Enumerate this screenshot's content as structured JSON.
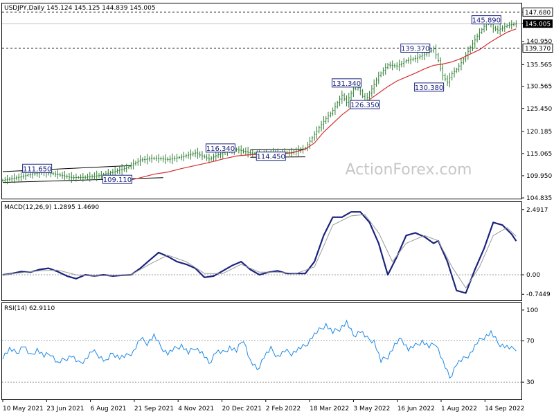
{
  "header": {
    "symbol_line": "USDJPY,Daily  145.124 145.125 144.839 145.005",
    "watermark": "ActionForex.com"
  },
  "colors": {
    "candle": "#2e7d32",
    "sma": "#d32f2f",
    "macd": "#1a237e",
    "signal": "#999999",
    "rsi": "#1e88e5",
    "trendline": "#000000",
    "label_border": "#1a237e",
    "label_text": "#1a237e"
  },
  "chart_data": [
    {
      "type": "line",
      "panel": "price",
      "ylim": [
        104.835,
        149.5
      ],
      "y_ticks": [
        "147.680",
        "145.065",
        "140.950",
        "135.565",
        "130.565",
        "125.450",
        "120.185",
        "115.065",
        "109.950",
        "104.835"
      ],
      "current_price_label": "145.005",
      "level_labels": [
        {
          "value": 147.68,
          "label": "147.680",
          "dashed": true
        },
        {
          "value": 139.37,
          "label": "139.370",
          "dashed": true,
          "highlight": true
        }
      ],
      "x_ticks": [
        "10 May 2021",
        "23 Jun 2021",
        "6 Aug 2021",
        "21 Sep 2021",
        "4 Nov 2021",
        "20 Dec 2021",
        "2 Feb 2022",
        "18 Mar 2022",
        "3 May 2022",
        "16 Jun 2022",
        "1 Aug 2022",
        "14 Sep 2022"
      ],
      "price_path": [
        [
          0,
          108.9
        ],
        [
          6,
          109.5
        ],
        [
          12,
          110.3
        ],
        [
          18,
          110.8
        ],
        [
          24,
          110.2
        ],
        [
          30,
          109.5
        ],
        [
          36,
          109.6
        ],
        [
          42,
          110.0
        ],
        [
          48,
          110.8
        ],
        [
          54,
          111.8
        ],
        [
          60,
          113.6
        ],
        [
          66,
          114.0
        ],
        [
          72,
          113.7
        ],
        [
          78,
          114.3
        ],
        [
          84,
          115.2
        ],
        [
          90,
          113.8
        ],
        [
          96,
          115.3
        ],
        [
          102,
          116.0
        ],
        [
          108,
          115.2
        ],
        [
          114,
          115.0
        ],
        [
          120,
          115.3
        ],
        [
          126,
          115.3
        ],
        [
          132,
          116.3
        ],
        [
          136,
          119.5
        ],
        [
          140,
          122.5
        ],
        [
          144,
          125.0
        ],
        [
          148,
          128.5
        ],
        [
          150,
          126.8
        ],
        [
          152,
          129.0
        ],
        [
          154,
          131.0
        ],
        [
          156,
          129.5
        ],
        [
          158,
          127.0
        ],
        [
          160,
          129.0
        ],
        [
          164,
          133.0
        ],
        [
          168,
          135.5
        ],
        [
          172,
          135.2
        ],
        [
          176,
          136.5
        ],
        [
          180,
          137.0
        ],
        [
          184,
          138.0
        ],
        [
          188,
          139.2
        ],
        [
          190,
          136.5
        ],
        [
          192,
          133.0
        ],
        [
          194,
          131.5
        ],
        [
          196,
          133.5
        ],
        [
          198,
          134.5
        ],
        [
          200,
          136.0
        ],
        [
          204,
          139.5
        ],
        [
          208,
          143.0
        ],
        [
          212,
          145.8
        ],
        [
          214,
          144.0
        ],
        [
          216,
          143.5
        ],
        [
          220,
          144.6
        ],
        [
          224,
          145.0
        ]
      ],
      "sma_path": [
        [
          56,
          109.0
        ],
        [
          60,
          109.5
        ],
        [
          66,
          110.3
        ],
        [
          72,
          110.8
        ],
        [
          78,
          111.6
        ],
        [
          84,
          112.3
        ],
        [
          90,
          113.0
        ],
        [
          96,
          113.8
        ],
        [
          102,
          114.5
        ],
        [
          108,
          114.8
        ],
        [
          114,
          114.9
        ],
        [
          120,
          115.0
        ],
        [
          126,
          115.2
        ],
        [
          132,
          116.1
        ],
        [
          136,
          117.5
        ],
        [
          140,
          120.0
        ],
        [
          144,
          122.0
        ],
        [
          148,
          124.0
        ],
        [
          152,
          125.6
        ],
        [
          156,
          126.5
        ],
        [
          160,
          127.5
        ],
        [
          164,
          129.0
        ],
        [
          168,
          130.5
        ],
        [
          172,
          131.8
        ],
        [
          176,
          132.7
        ],
        [
          180,
          133.6
        ],
        [
          184,
          134.6
        ],
        [
          188,
          135.4
        ],
        [
          192,
          135.7
        ],
        [
          196,
          136.2
        ],
        [
          200,
          137.0
        ],
        [
          204,
          138.0
        ],
        [
          208,
          139.0
        ],
        [
          212,
          140.5
        ],
        [
          216,
          141.8
        ],
        [
          220,
          143.0
        ],
        [
          224,
          143.8
        ]
      ],
      "trendlines": [
        {
          "from": [
            0,
            110.9
          ],
          "to": [
            56,
            112.3
          ]
        },
        {
          "from": [
            0,
            108.4
          ],
          "to": [
            70,
            109.5
          ]
        },
        {
          "from": [
            108,
            115.9
          ],
          "to": [
            132,
            116.1
          ]
        },
        {
          "from": [
            108,
            114.2
          ],
          "to": [
            132,
            114.3
          ]
        }
      ],
      "annotations": [
        {
          "label": "111.650",
          "x": 15,
          "y": 111.65
        },
        {
          "label": "109.110",
          "x": 50,
          "y": 109.11
        },
        {
          "label": "116.340",
          "x": 95,
          "y": 116.34
        },
        {
          "label": "114.450",
          "x": 117,
          "y": 114.45
        },
        {
          "label": "131.340",
          "x": 150,
          "y": 131.34
        },
        {
          "label": "126.350",
          "x": 158,
          "y": 126.35
        },
        {
          "label": "139.370",
          "x": 180,
          "y": 139.37
        },
        {
          "label": "130.380",
          "x": 186,
          "y": 130.38
        },
        {
          "label": "145.890",
          "x": 211,
          "y": 145.89
        }
      ]
    },
    {
      "type": "line",
      "panel": "macd",
      "title": "MACD(12,26,9) 1.2895 1.4690",
      "ylim": [
        -0.95,
        2.75
      ],
      "y_ticks": [
        "2.4917",
        "0.00",
        "-0.7449"
      ],
      "zero_line_label": "0.00",
      "series": [
        {
          "role": "macd",
          "values": [
            [
              0,
              0.0
            ],
            [
              4,
              0.05
            ],
            [
              8,
              0.12
            ],
            [
              12,
              0.1
            ],
            [
              16,
              0.2
            ],
            [
              20,
              0.25
            ],
            [
              24,
              0.12
            ],
            [
              28,
              -0.05
            ],
            [
              32,
              -0.15
            ],
            [
              36,
              0.0
            ],
            [
              40,
              -0.05
            ],
            [
              44,
              0.0
            ],
            [
              48,
              -0.05
            ],
            [
              52,
              -0.02
            ],
            [
              56,
              0.0
            ],
            [
              60,
              0.25
            ],
            [
              64,
              0.55
            ],
            [
              68,
              0.85
            ],
            [
              72,
              0.7
            ],
            [
              76,
              0.5
            ],
            [
              80,
              0.4
            ],
            [
              84,
              0.25
            ],
            [
              88,
              -0.1
            ],
            [
              92,
              -0.05
            ],
            [
              96,
              0.15
            ],
            [
              100,
              0.35
            ],
            [
              104,
              0.5
            ],
            [
              108,
              0.2
            ],
            [
              112,
              0.0
            ],
            [
              116,
              0.1
            ],
            [
              120,
              0.15
            ],
            [
              124,
              0.05
            ],
            [
              128,
              0.05
            ],
            [
              132,
              0.05
            ],
            [
              136,
              0.5
            ],
            [
              140,
              1.5
            ],
            [
              144,
              2.2
            ],
            [
              148,
              2.2
            ],
            [
              152,
              2.4
            ],
            [
              156,
              2.4
            ],
            [
              160,
              2.0
            ],
            [
              164,
              1.2
            ],
            [
              168,
              0.0
            ],
            [
              172,
              0.7
            ],
            [
              176,
              1.5
            ],
            [
              180,
              1.6
            ],
            [
              184,
              1.45
            ],
            [
              188,
              1.2
            ],
            [
              190,
              1.3
            ],
            [
              194,
              0.5
            ],
            [
              198,
              -0.6
            ],
            [
              202,
              -0.7
            ],
            [
              206,
              0.2
            ],
            [
              210,
              1.0
            ],
            [
              214,
              2.0
            ],
            [
              218,
              1.9
            ],
            [
              222,
              1.55
            ],
            [
              224,
              1.29
            ]
          ]
        },
        {
          "role": "signal",
          "values": [
            [
              0,
              0.0
            ],
            [
              8,
              0.08
            ],
            [
              16,
              0.15
            ],
            [
              24,
              0.18
            ],
            [
              32,
              0.0
            ],
            [
              40,
              -0.05
            ],
            [
              48,
              -0.02
            ],
            [
              56,
              0.0
            ],
            [
              64,
              0.4
            ],
            [
              72,
              0.75
            ],
            [
              80,
              0.5
            ],
            [
              88,
              0.05
            ],
            [
              96,
              0.05
            ],
            [
              104,
              0.4
            ],
            [
              112,
              0.1
            ],
            [
              120,
              0.1
            ],
            [
              128,
              0.05
            ],
            [
              136,
              0.3
            ],
            [
              140,
              1.1
            ],
            [
              144,
              1.9
            ],
            [
              152,
              2.25
            ],
            [
              158,
              2.3
            ],
            [
              164,
              1.6
            ],
            [
              170,
              0.5
            ],
            [
              176,
              1.2
            ],
            [
              184,
              1.5
            ],
            [
              190,
              1.3
            ],
            [
              196,
              0.3
            ],
            [
              202,
              -0.5
            ],
            [
              208,
              0.3
            ],
            [
              214,
              1.5
            ],
            [
              220,
              1.8
            ],
            [
              224,
              1.47
            ]
          ]
        }
      ]
    },
    {
      "type": "line",
      "panel": "rsi",
      "title": "RSI(14) 62.9110",
      "ylim": [
        14,
        106
      ],
      "y_ticks": [
        "100",
        "70",
        "30"
      ],
      "levels": [
        70,
        30
      ],
      "values": [
        [
          0,
          55
        ],
        [
          3,
          62
        ],
        [
          6,
          58
        ],
        [
          9,
          66
        ],
        [
          12,
          55
        ],
        [
          15,
          62
        ],
        [
          18,
          55
        ],
        [
          21,
          58
        ],
        [
          24,
          48
        ],
        [
          27,
          52
        ],
        [
          30,
          56
        ],
        [
          33,
          48
        ],
        [
          36,
          52
        ],
        [
          39,
          60
        ],
        [
          42,
          56
        ],
        [
          45,
          50
        ],
        [
          48,
          58
        ],
        [
          51,
          54
        ],
        [
          54,
          55
        ],
        [
          57,
          60
        ],
        [
          60,
          72
        ],
        [
          63,
          68
        ],
        [
          66,
          75
        ],
        [
          69,
          64
        ],
        [
          72,
          58
        ],
        [
          75,
          62
        ],
        [
          78,
          66
        ],
        [
          81,
          58
        ],
        [
          84,
          64
        ],
        [
          87,
          58
        ],
        [
          90,
          48
        ],
        [
          93,
          60
        ],
        [
          96,
          58
        ],
        [
          99,
          64
        ],
        [
          102,
          60
        ],
        [
          105,
          72
        ],
        [
          108,
          50
        ],
        [
          111,
          42
        ],
        [
          114,
          55
        ],
        [
          117,
          62
        ],
        [
          120,
          55
        ],
        [
          123,
          60
        ],
        [
          126,
          58
        ],
        [
          129,
          62
        ],
        [
          132,
          65
        ],
        [
          135,
          74
        ],
        [
          138,
          80
        ],
        [
          141,
          86
        ],
        [
          144,
          78
        ],
        [
          147,
          82
        ],
        [
          150,
          88
        ],
        [
          153,
          75
        ],
        [
          156,
          80
        ],
        [
          159,
          72
        ],
        [
          162,
          70
        ],
        [
          165,
          50
        ],
        [
          168,
          55
        ],
        [
          171,
          66
        ],
        [
          174,
          72
        ],
        [
          177,
          62
        ],
        [
          180,
          65
        ],
        [
          183,
          70
        ],
        [
          186,
          64
        ],
        [
          189,
          68
        ],
        [
          192,
          50
        ],
        [
          195,
          34
        ],
        [
          198,
          48
        ],
        [
          201,
          52
        ],
        [
          204,
          58
        ],
        [
          207,
          68
        ],
        [
          210,
          74
        ],
        [
          213,
          78
        ],
        [
          216,
          68
        ],
        [
          219,
          65
        ],
        [
          222,
          62
        ],
        [
          224,
          63
        ]
      ]
    }
  ]
}
